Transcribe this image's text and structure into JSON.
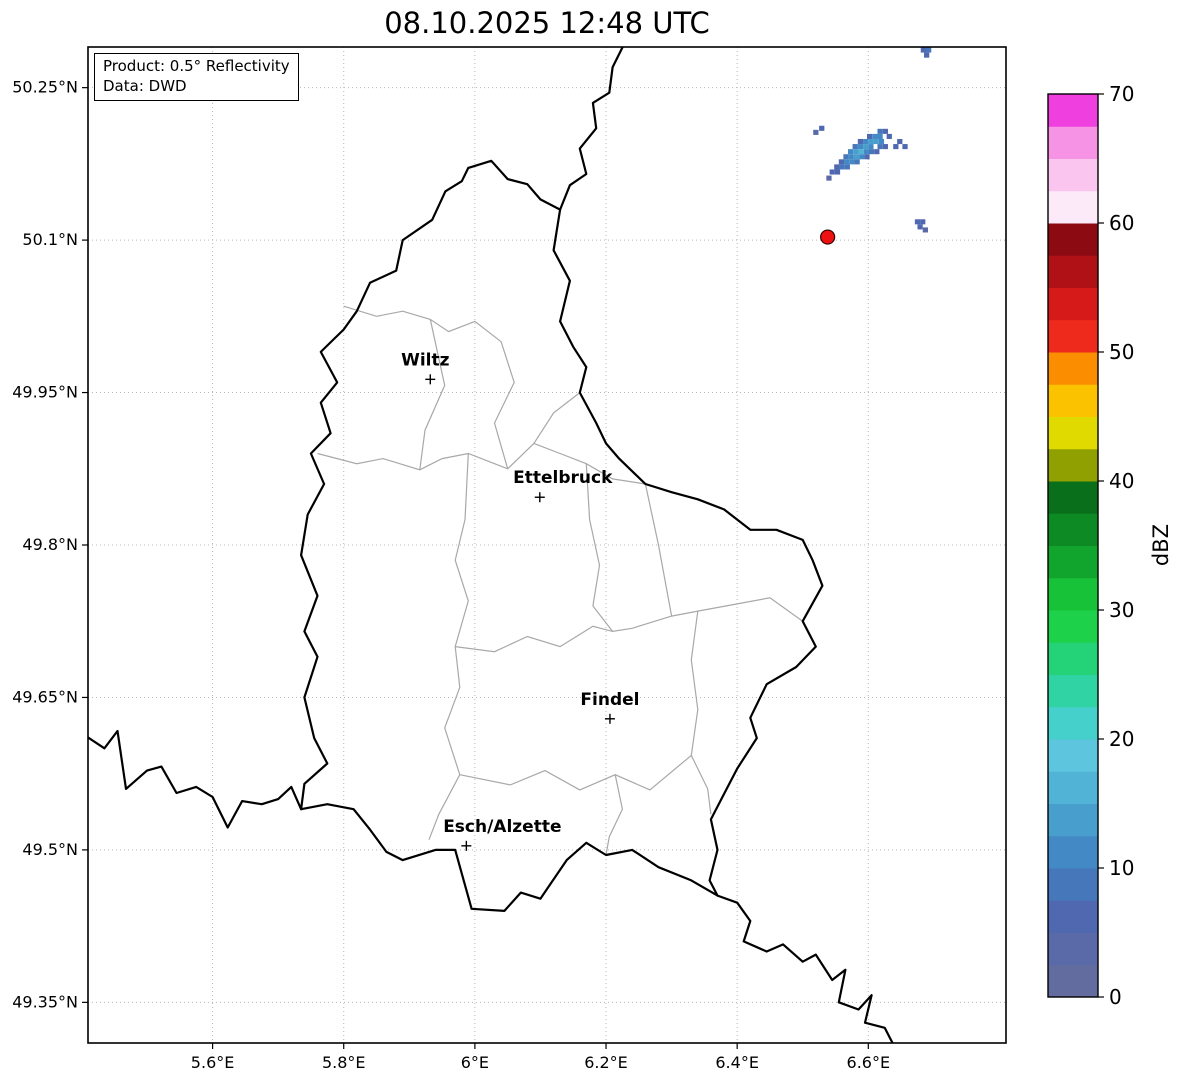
{
  "title": "08.10.2025 12:48 UTC",
  "info_box": {
    "line1": "Product: 0.5° Reflectivity",
    "line2": "Data: DWD"
  },
  "map": {
    "extent": {
      "lon_min": 5.41,
      "lon_max": 6.81,
      "lat_min": 49.31,
      "lat_max": 50.29
    },
    "grid_color": "#b8b8b8",
    "country_border_color": "#000000",
    "district_border_color": "#a8a8a8",
    "x_ticks": [
      {
        "value": 5.6,
        "label": "5.6°E"
      },
      {
        "value": 5.8,
        "label": "5.8°E"
      },
      {
        "value": 6.0,
        "label": "6°E"
      },
      {
        "value": 6.2,
        "label": "6.2°E"
      },
      {
        "value": 6.4,
        "label": "6.4°E"
      },
      {
        "value": 6.6,
        "label": "6.6°E"
      }
    ],
    "y_ticks": [
      {
        "value": 50.25,
        "label": "50.25°N"
      },
      {
        "value": 50.1,
        "label": "50.1°N"
      },
      {
        "value": 49.95,
        "label": "49.95°N"
      },
      {
        "value": 49.8,
        "label": "49.8°N"
      },
      {
        "value": 49.65,
        "label": "49.65°N"
      },
      {
        "value": 49.5,
        "label": "49.5°N"
      },
      {
        "value": 49.35,
        "label": "49.35°N"
      }
    ],
    "country_borders": [
      [
        [
          5.99,
          50.171
        ],
        [
          6.025,
          50.178
        ],
        [
          6.05,
          50.16
        ],
        [
          6.08,
          50.155
        ],
        [
          6.1,
          50.14
        ],
        [
          6.13,
          50.13
        ],
        [
          6.12,
          50.09
        ],
        [
          6.145,
          50.06
        ],
        [
          6.13,
          50.02
        ],
        [
          6.15,
          49.995
        ],
        [
          6.17,
          49.975
        ],
        [
          6.16,
          49.95
        ],
        [
          6.185,
          49.92
        ],
        [
          6.2,
          49.9
        ],
        [
          6.22,
          49.885
        ],
        [
          6.26,
          49.86
        ],
        [
          6.3,
          49.852
        ],
        [
          6.34,
          49.845
        ],
        [
          6.38,
          49.835
        ],
        [
          6.42,
          49.815
        ],
        [
          6.46,
          49.815
        ],
        [
          6.5,
          49.805
        ],
        [
          6.515,
          49.785
        ],
        [
          6.53,
          49.76
        ],
        [
          6.5,
          49.725
        ],
        [
          6.52,
          49.7
        ],
        [
          6.49,
          49.68
        ],
        [
          6.445,
          49.663
        ],
        [
          6.42,
          49.63
        ],
        [
          6.43,
          49.61
        ],
        [
          6.4,
          49.58
        ],
        [
          6.38,
          49.555
        ],
        [
          6.36,
          49.53
        ],
        [
          6.37,
          49.5
        ],
        [
          6.358,
          49.47
        ],
        [
          6.37,
          49.455
        ],
        [
          6.33,
          49.47
        ],
        [
          6.28,
          49.483
        ],
        [
          6.24,
          49.5
        ],
        [
          6.2,
          49.495
        ],
        [
          6.17,
          49.507
        ],
        [
          6.14,
          49.49
        ],
        [
          6.1,
          49.452
        ],
        [
          6.07,
          49.458
        ],
        [
          6.045,
          49.44
        ],
        [
          5.995,
          49.442
        ],
        [
          5.97,
          49.5
        ],
        [
          5.94,
          49.5
        ],
        [
          5.89,
          49.49
        ],
        [
          5.865,
          49.498
        ],
        [
          5.84,
          49.52
        ],
        [
          5.815,
          49.54
        ],
        [
          5.775,
          49.545
        ],
        [
          5.735,
          49.54
        ],
        [
          5.74,
          49.565
        ],
        [
          5.775,
          49.585
        ],
        [
          5.755,
          49.61
        ],
        [
          5.74,
          49.65
        ],
        [
          5.76,
          49.69
        ],
        [
          5.74,
          49.715
        ],
        [
          5.76,
          49.75
        ],
        [
          5.735,
          49.79
        ],
        [
          5.745,
          49.83
        ],
        [
          5.77,
          49.86
        ],
        [
          5.75,
          49.89
        ],
        [
          5.78,
          49.91
        ],
        [
          5.765,
          49.94
        ],
        [
          5.79,
          49.96
        ],
        [
          5.765,
          49.99
        ],
        [
          5.8,
          50.012
        ],
        [
          5.82,
          50.03
        ],
        [
          5.84,
          50.058
        ],
        [
          5.88,
          50.07
        ],
        [
          5.89,
          50.1
        ],
        [
          5.935,
          50.12
        ],
        [
          5.955,
          50.148
        ],
        [
          5.98,
          50.158
        ],
        [
          5.99,
          50.171
        ]
      ],
      [
        [
          6.13,
          50.13
        ],
        [
          6.145,
          50.154
        ],
        [
          6.17,
          50.165
        ],
        [
          6.16,
          50.19
        ],
        [
          6.185,
          50.21
        ],
        [
          6.18,
          50.235
        ],
        [
          6.205,
          50.245
        ],
        [
          6.21,
          50.27
        ],
        [
          6.233,
          50.3
        ]
      ],
      [
        [
          5.4,
          49.615
        ],
        [
          5.435,
          49.6
        ],
        [
          5.455,
          49.617
        ],
        [
          5.468,
          49.56
        ],
        [
          5.5,
          49.578
        ],
        [
          5.522,
          49.582
        ],
        [
          5.545,
          49.556
        ],
        [
          5.575,
          49.562
        ],
        [
          5.6,
          49.552
        ],
        [
          5.623,
          49.522
        ],
        [
          5.645,
          49.548
        ],
        [
          5.675,
          49.545
        ],
        [
          5.7,
          49.55
        ],
        [
          5.72,
          49.562
        ],
        [
          5.735,
          49.54
        ]
      ],
      [
        [
          6.37,
          49.455
        ],
        [
          6.4,
          49.448
        ],
        [
          6.42,
          49.43
        ],
        [
          6.41,
          49.41
        ],
        [
          6.445,
          49.4
        ],
        [
          6.47,
          49.407
        ],
        [
          6.5,
          49.39
        ],
        [
          6.52,
          49.397
        ],
        [
          6.545,
          49.372
        ],
        [
          6.565,
          49.382
        ],
        [
          6.555,
          49.35
        ],
        [
          6.585,
          49.343
        ],
        [
          6.605,
          49.357
        ],
        [
          6.595,
          49.33
        ],
        [
          6.625,
          49.325
        ],
        [
          6.645,
          49.3
        ]
      ]
    ],
    "district_borders": [
      [
        [
          5.8,
          50.035
        ],
        [
          5.85,
          50.025
        ],
        [
          5.89,
          50.03
        ],
        [
          5.932,
          50.022
        ],
        [
          5.96,
          50.01
        ],
        [
          6.0,
          50.02
        ],
        [
          6.04,
          50.0
        ],
        [
          6.06,
          49.96
        ],
        [
          6.03,
          49.92
        ],
        [
          6.05,
          49.875
        ]
      ],
      [
        [
          5.76,
          49.89
        ],
        [
          5.82,
          49.88
        ],
        [
          5.86,
          49.885
        ],
        [
          5.916,
          49.874
        ],
        [
          5.95,
          49.885
        ],
        [
          5.99,
          49.89
        ],
        [
          6.05,
          49.875
        ],
        [
          6.09,
          49.9
        ],
        [
          6.13,
          49.89
        ],
        [
          6.17,
          49.88
        ],
        [
          6.21,
          49.865
        ],
        [
          6.26,
          49.86
        ]
      ],
      [
        [
          5.932,
          50.022
        ],
        [
          5.954,
          49.957
        ],
        [
          5.924,
          49.913
        ],
        [
          5.916,
          49.874
        ]
      ],
      [
        [
          5.99,
          49.89
        ],
        [
          5.985,
          49.825
        ],
        [
          5.97,
          49.785
        ],
        [
          5.99,
          49.745
        ],
        [
          5.97,
          49.7
        ],
        [
          5.977,
          49.66
        ],
        [
          5.954,
          49.62
        ],
        [
          5.977,
          49.574
        ],
        [
          5.945,
          49.535
        ],
        [
          5.93,
          49.51
        ]
      ],
      [
        [
          5.97,
          49.7
        ],
        [
          6.03,
          49.695
        ],
        [
          6.08,
          49.71
        ],
        [
          6.13,
          49.7
        ],
        [
          6.18,
          49.72
        ],
        [
          6.21,
          49.715
        ],
        [
          6.24,
          49.718
        ],
        [
          6.3,
          49.73
        ],
        [
          6.34,
          49.735
        ],
        [
          6.4,
          49.742
        ],
        [
          6.45,
          49.748
        ],
        [
          6.5,
          49.725
        ]
      ],
      [
        [
          6.17,
          49.88
        ],
        [
          6.175,
          49.825
        ],
        [
          6.19,
          49.78
        ],
        [
          6.18,
          49.74
        ],
        [
          6.21,
          49.715
        ]
      ],
      [
        [
          6.34,
          49.735
        ],
        [
          6.33,
          49.687
        ],
        [
          6.34,
          49.638
        ],
        [
          6.33,
          49.593
        ],
        [
          6.355,
          49.56
        ],
        [
          6.36,
          49.535
        ]
      ],
      [
        [
          5.977,
          49.574
        ],
        [
          6.054,
          49.564
        ],
        [
          6.107,
          49.578
        ],
        [
          6.16,
          49.559
        ],
        [
          6.214,
          49.574
        ],
        [
          6.267,
          49.559
        ],
        [
          6.33,
          49.593
        ]
      ],
      [
        [
          6.214,
          49.574
        ],
        [
          6.225,
          49.54
        ],
        [
          6.205,
          49.513
        ],
        [
          6.2,
          49.495
        ]
      ],
      [
        [
          6.09,
          49.9
        ],
        [
          6.12,
          49.93
        ],
        [
          6.16,
          49.95
        ]
      ],
      [
        [
          6.26,
          49.86
        ],
        [
          6.28,
          49.8
        ],
        [
          6.3,
          49.73
        ]
      ]
    ],
    "cities": [
      {
        "name": "Wiltz",
        "lon": 5.932,
        "lat": 49.963,
        "label_dx": -5
      },
      {
        "name": "Ettelbruck",
        "lon": 6.099,
        "lat": 49.847,
        "label_dx": 23
      },
      {
        "name": "Findel",
        "lon": 6.206,
        "lat": 49.629,
        "label_dx": 0
      },
      {
        "name": "Esch/Alzette",
        "lon": 5.987,
        "lat": 49.504,
        "label_dx": 36
      }
    ],
    "radar_site": {
      "lon": 6.538,
      "lat": 50.103,
      "color": "#ee1111",
      "edge_color": "#330000"
    },
    "cell_size": {
      "dlon": 0.008,
      "dlat": 0.005
    },
    "radar_cells": [
      [
        6.618,
        50.207,
        8
      ],
      [
        6.626,
        50.207,
        6
      ],
      [
        6.602,
        50.202,
        7
      ],
      [
        6.61,
        50.202,
        10
      ],
      [
        6.618,
        50.202,
        12
      ],
      [
        6.632,
        50.202,
        6
      ],
      [
        6.588,
        50.197,
        6
      ],
      [
        6.596,
        50.197,
        10
      ],
      [
        6.604,
        50.197,
        13
      ],
      [
        6.612,
        50.197,
        14
      ],
      [
        6.62,
        50.197,
        10
      ],
      [
        6.648,
        50.197,
        7
      ],
      [
        6.58,
        50.192,
        8
      ],
      [
        6.588,
        50.192,
        12
      ],
      [
        6.596,
        50.192,
        14
      ],
      [
        6.604,
        50.192,
        12
      ],
      [
        6.618,
        50.192,
        9
      ],
      [
        6.626,
        50.192,
        7
      ],
      [
        6.642,
        50.192,
        5
      ],
      [
        6.656,
        50.192,
        6
      ],
      [
        6.573,
        50.187,
        10
      ],
      [
        6.581,
        50.187,
        13
      ],
      [
        6.589,
        50.187,
        15
      ],
      [
        6.597,
        50.187,
        12
      ],
      [
        6.605,
        50.187,
        9
      ],
      [
        6.613,
        50.187,
        7
      ],
      [
        6.566,
        50.182,
        8
      ],
      [
        6.574,
        50.182,
        12
      ],
      [
        6.582,
        50.182,
        13
      ],
      [
        6.59,
        50.182,
        10
      ],
      [
        6.598,
        50.182,
        7
      ],
      [
        6.559,
        50.177,
        6
      ],
      [
        6.567,
        50.177,
        10
      ],
      [
        6.575,
        50.177,
        11
      ],
      [
        6.583,
        50.177,
        8
      ],
      [
        6.552,
        50.172,
        7
      ],
      [
        6.56,
        50.172,
        9
      ],
      [
        6.568,
        50.172,
        8
      ],
      [
        6.545,
        50.167,
        5
      ],
      [
        6.553,
        50.167,
        7
      ],
      [
        6.54,
        50.161,
        4
      ],
      [
        6.52,
        50.206,
        4
      ],
      [
        6.529,
        50.21,
        5
      ],
      [
        6.684,
        50.287,
        6
      ],
      [
        6.692,
        50.287,
        8
      ],
      [
        6.689,
        50.282,
        5
      ],
      [
        6.675,
        50.118,
        5
      ],
      [
        6.683,
        50.118,
        7
      ],
      [
        6.679,
        50.113,
        6
      ],
      [
        6.687,
        50.11,
        4
      ]
    ]
  },
  "colorbar": {
    "label": "dBZ",
    "min": 0,
    "max": 70,
    "step": 2.5,
    "ticks": [
      0,
      10,
      20,
      30,
      40,
      50,
      60,
      70
    ],
    "colors": [
      "#636c9f",
      "#5a6aa8",
      "#4f68b0",
      "#4677bb",
      "#4289c6",
      "#489fce",
      "#51b3d6",
      "#5dc5dd",
      "#45d0cb",
      "#30d3a4",
      "#24d377",
      "#1dd24a",
      "#17c138",
      "#12a52e",
      "#0d8a24",
      "#096f1b",
      "#8fa000",
      "#e0da00",
      "#fbc200",
      "#fb8d00",
      "#ee2a1d",
      "#d61a1a",
      "#b01117",
      "#8c0a12",
      "#fdeaf8",
      "#fac5ef",
      "#f693e5",
      "#ef3fde"
    ]
  }
}
